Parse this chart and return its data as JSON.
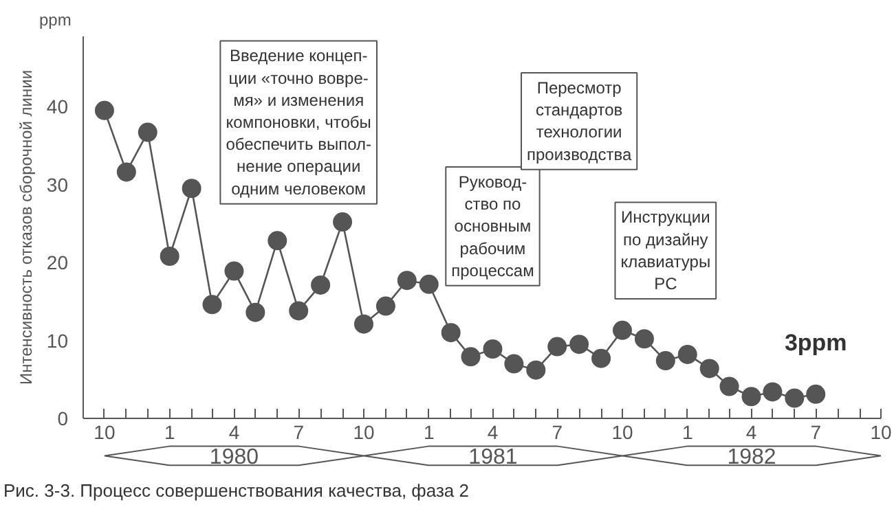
{
  "chart_data": {
    "type": "line",
    "title": "Рис. 3-3. Процесс совершенствования качества, фаза 2",
    "ylabel": "Интенсивность отказов сборочной линии",
    "x": [
      "1979-10",
      "1979-11",
      "1979-12",
      "1980-01",
      "1980-02",
      "1980-03",
      "1980-04",
      "1980-05",
      "1980-06",
      "1980-07",
      "1980-08",
      "1980-09",
      "1980-10",
      "1980-11",
      "1980-12",
      "1981-01",
      "1981-02",
      "1981-03",
      "1981-04",
      "1981-05",
      "1981-06",
      "1981-07",
      "1981-08",
      "1981-09",
      "1981-10",
      "1981-11",
      "1981-12",
      "1982-01",
      "1982-02",
      "1982-03",
      "1982-04",
      "1982-05",
      "1982-06",
      "1982-07"
    ],
    "values": [
      39.5,
      31.6,
      36.7,
      20.8,
      29.5,
      14.6,
      18.9,
      13.6,
      22.8,
      13.8,
      17.1,
      25.2,
      12.1,
      14.4,
      17.7,
      17.2,
      11.0,
      7.9,
      8.9,
      7.0,
      6.2,
      9.2,
      9.5,
      7.7,
      11.3,
      10.2,
      7.4,
      8.2,
      6.4,
      4.1,
      2.8,
      3.4,
      2.6,
      3.1
    ],
    "color": "#555555",
    "marker": "circle",
    "line_style": "solid",
    "grid": false,
    "xlim": [
      "1979-09",
      "1982-10"
    ],
    "ylim": [
      0,
      49
    ],
    "yticks": [
      0,
      10,
      20,
      30,
      40
    ],
    "xticks": [
      {
        "value": "1979-10",
        "label": "10"
      },
      {
        "value": "1979-11",
        "label": null
      },
      {
        "value": "1979-12",
        "label": null
      },
      {
        "value": "1980-01",
        "label": "1"
      },
      {
        "value": "1980-02",
        "label": null
      },
      {
        "value": "1980-03",
        "label": null
      },
      {
        "value": "1980-04",
        "label": "4"
      },
      {
        "value": "1980-05",
        "label": null
      },
      {
        "value": "1980-06",
        "label": null
      },
      {
        "value": "1980-07",
        "label": "7"
      },
      {
        "value": "1980-08",
        "label": null
      },
      {
        "value": "1980-09",
        "label": null
      },
      {
        "value": "1980-10",
        "label": "10"
      },
      {
        "value": "1980-11",
        "label": null
      },
      {
        "value": "1980-12",
        "label": null
      },
      {
        "value": "1981-01",
        "label": "1"
      },
      {
        "value": "1981-02",
        "label": null
      },
      {
        "value": "1981-03",
        "label": null
      },
      {
        "value": "1981-04",
        "label": "4"
      },
      {
        "value": "1981-05",
        "label": null
      },
      {
        "value": "1981-06",
        "label": null
      },
      {
        "value": "1981-07",
        "label": "7"
      },
      {
        "value": "1981-08",
        "label": null
      },
      {
        "value": "1981-09",
        "label": null
      },
      {
        "value": "1981-10",
        "label": "10"
      },
      {
        "value": "1981-11",
        "label": null
      },
      {
        "value": "1981-12",
        "label": null
      },
      {
        "value": "1982-01",
        "label": "1"
      },
      {
        "value": "1982-02",
        "label": null
      },
      {
        "value": "1982-03",
        "label": null
      },
      {
        "value": "1982-04",
        "label": "4"
      },
      {
        "value": "1982-05",
        "label": null
      },
      {
        "value": "1982-06",
        "label": null
      },
      {
        "value": "1982-07",
        "label": "7"
      },
      {
        "value": "1982-08",
        "label": null
      },
      {
        "value": "1982-09",
        "label": null
      },
      {
        "value": "1982-10",
        "label": "10"
      }
    ],
    "annotations": [
      "ppm",
      "Введение концеп-\nции «точно вовре-\nмя» и изменения\nкомпоновки, чтобы\nобеспечить выпол-\nнение операции\nодним человеком",
      "Руковод-\nство по\nосновным\nрабочим\nпроцессам",
      "Пересмотр\nстандартов\nтехнологии\nпроизводства",
      "Инструкции\nпо дизайну\nклавиатуры\nPC",
      "3ppm",
      "1980",
      "1981",
      "1982"
    ]
  }
}
